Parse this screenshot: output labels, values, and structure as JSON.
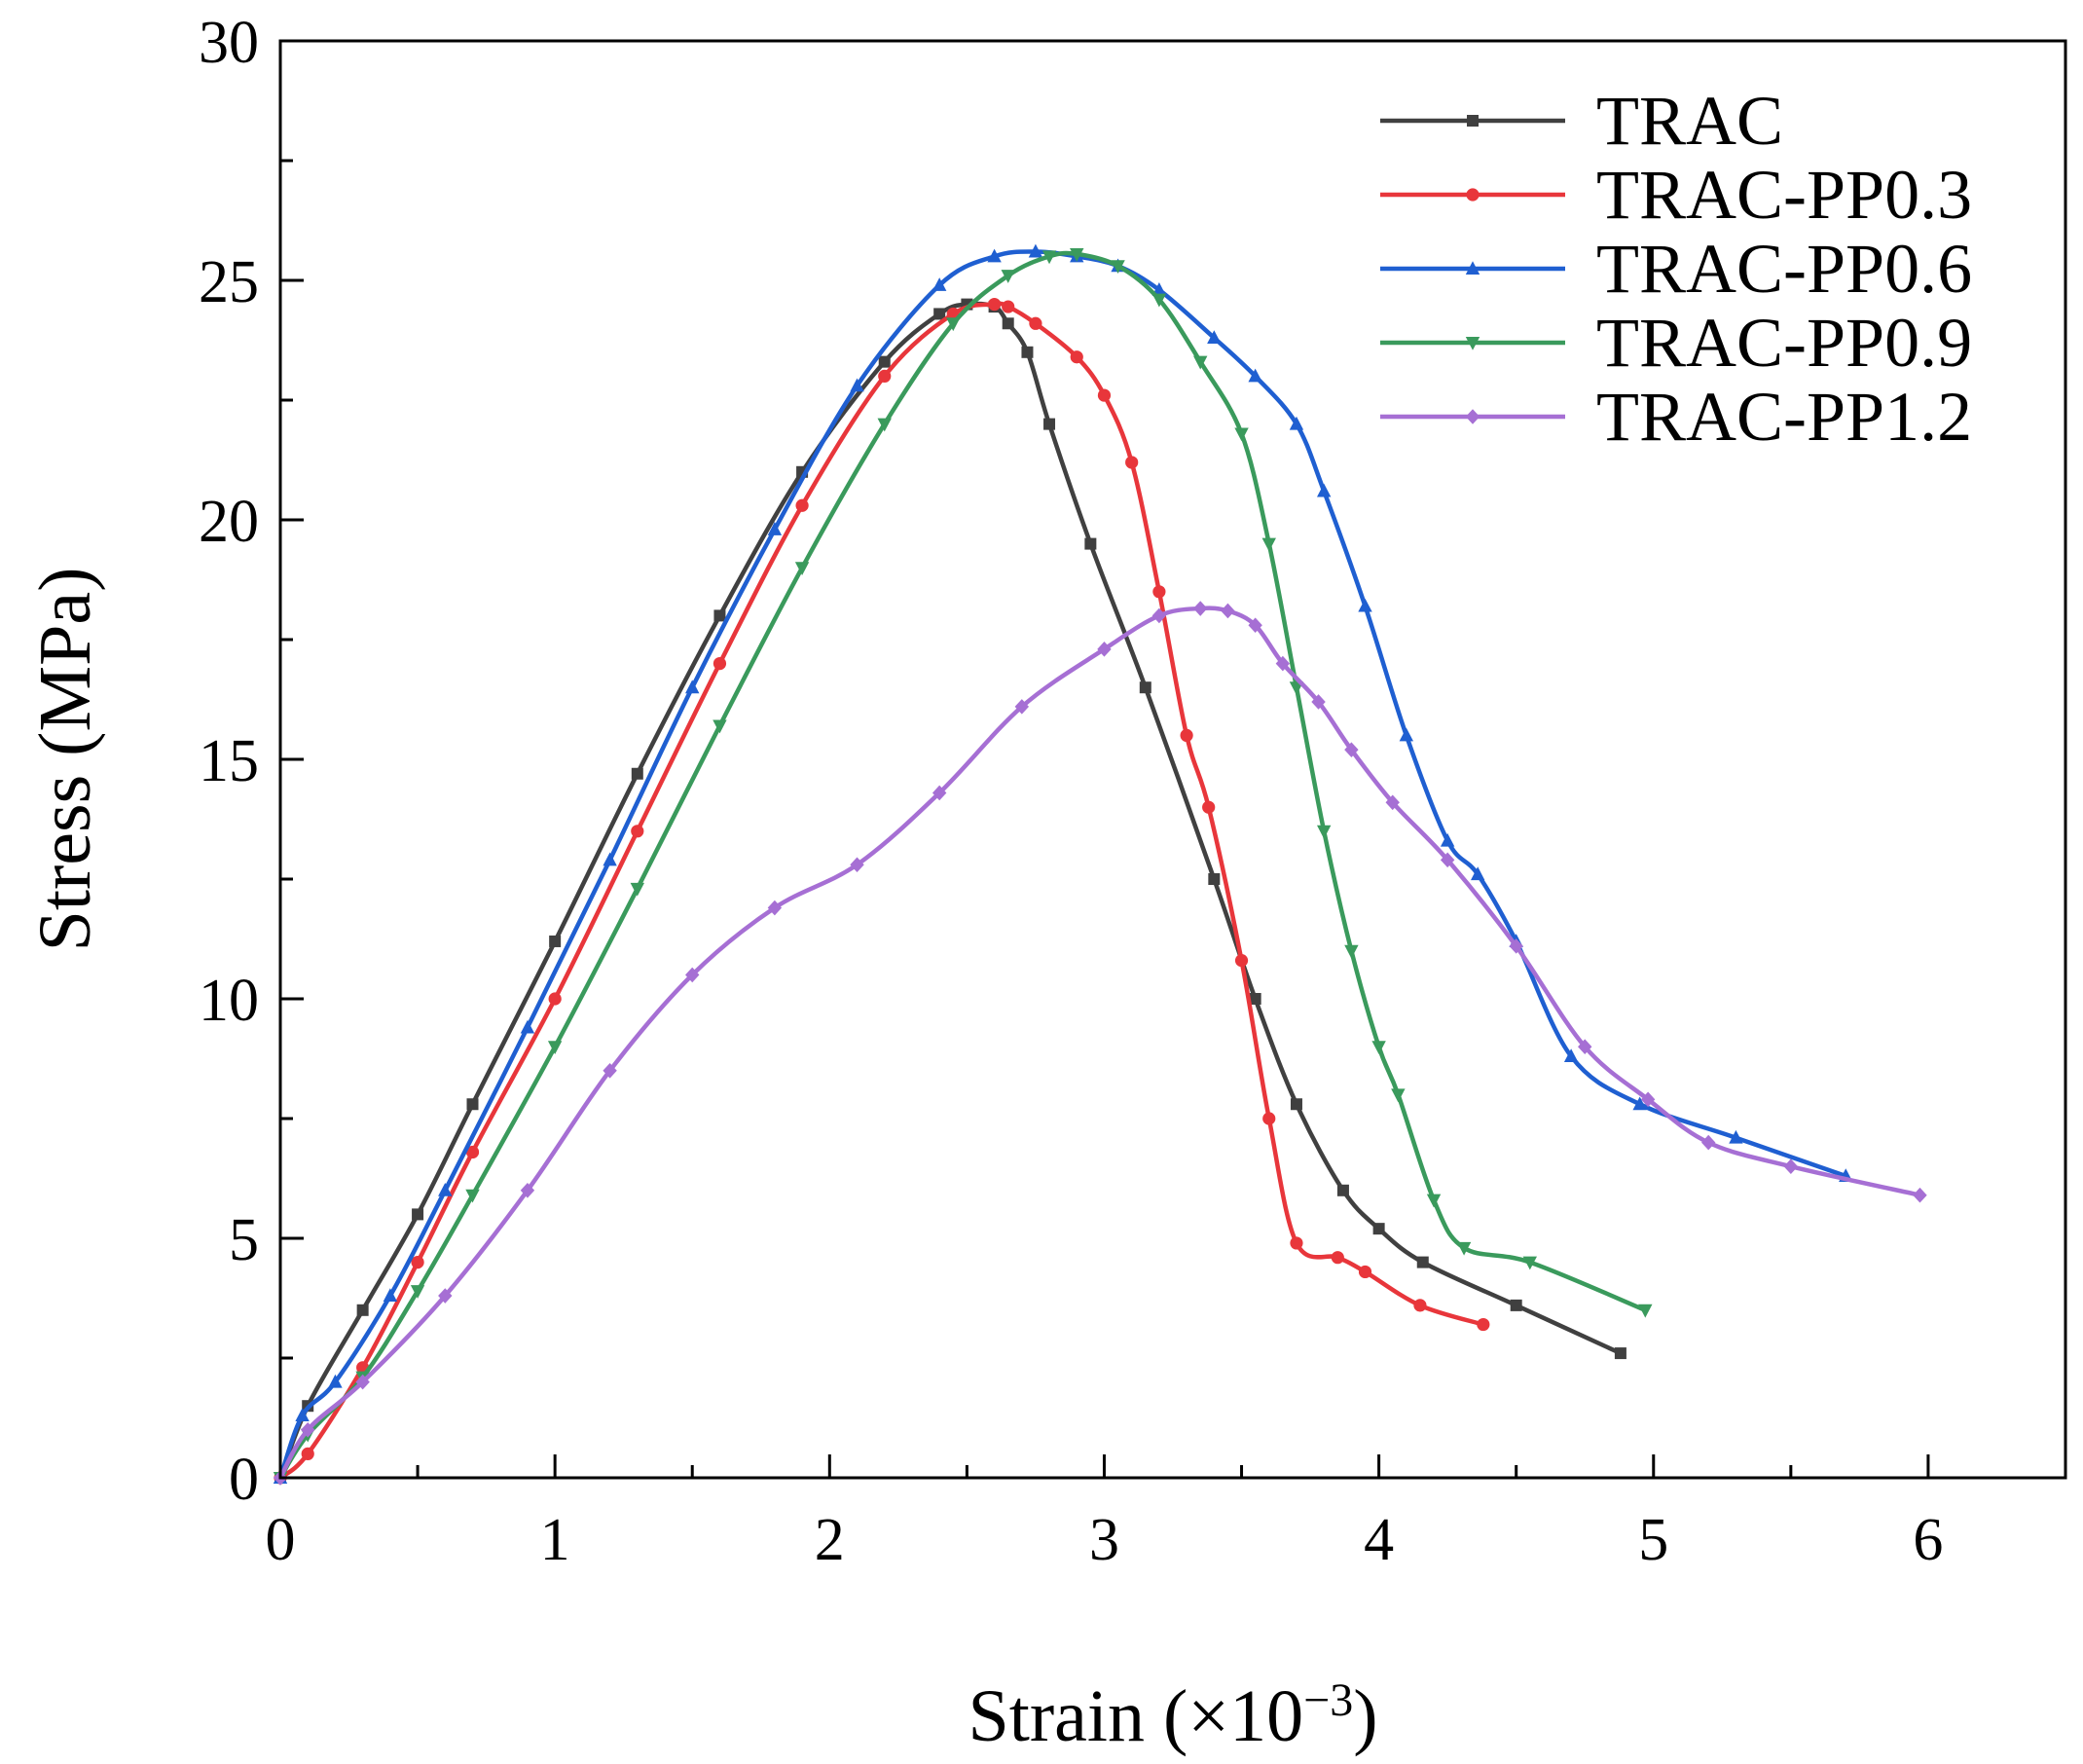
{
  "chart_data": {
    "type": "line",
    "xlabel": "Strain (×10",
    "xlabel_sup": "−3",
    "xlabel_close": ")",
    "ylabel": "Stress (MPa)",
    "xlim": [
      0,
      6.5
    ],
    "ylim": [
      0,
      30
    ],
    "xticks": [
      "0",
      "1",
      "2",
      "3",
      "4",
      "5",
      "6"
    ],
    "xtick_values": [
      0,
      1,
      2,
      3,
      4,
      5,
      6
    ],
    "yticks": [
      "0",
      "5",
      "10",
      "15",
      "20",
      "25",
      "30"
    ],
    "ytick_values": [
      0,
      5,
      10,
      15,
      20,
      25,
      30
    ],
    "grid": false,
    "legend_position": "top-right",
    "series": [
      {
        "name": "TRAC",
        "color": "#404040",
        "marker": "square",
        "x": [
          0,
          0.1,
          0.3,
          0.5,
          0.7,
          1.0,
          1.3,
          1.6,
          1.9,
          2.2,
          2.4,
          2.5,
          2.6,
          2.65,
          2.72,
          2.8,
          2.95,
          3.15,
          3.4,
          3.55,
          3.7,
          3.87,
          4.0,
          4.16,
          4.5,
          4.88
        ],
        "y": [
          0,
          1.5,
          3.5,
          5.5,
          7.8,
          11.2,
          14.7,
          18.0,
          21.0,
          23.3,
          24.3,
          24.5,
          24.45,
          24.1,
          23.5,
          22.0,
          19.5,
          16.5,
          12.5,
          10.0,
          7.8,
          6.0,
          5.2,
          4.5,
          3.6,
          2.6
        ]
      },
      {
        "name": "TRAC-PP0.3",
        "color": "#e8363b",
        "marker": "circle",
        "x": [
          0,
          0.1,
          0.3,
          0.5,
          0.7,
          1.0,
          1.3,
          1.6,
          1.9,
          2.2,
          2.45,
          2.6,
          2.65,
          2.75,
          2.9,
          3.0,
          3.1,
          3.2,
          3.3,
          3.38,
          3.5,
          3.6,
          3.7,
          3.85,
          3.95,
          4.15,
          4.38
        ],
        "y": [
          0,
          0.5,
          2.3,
          4.5,
          6.8,
          10.0,
          13.5,
          17.0,
          20.3,
          23.0,
          24.3,
          24.5,
          24.45,
          24.1,
          23.4,
          22.6,
          21.2,
          18.5,
          15.5,
          14.0,
          10.8,
          7.5,
          4.9,
          4.6,
          4.3,
          3.6,
          3.2
        ]
      },
      {
        "name": "TRAC-PP0.6",
        "color": "#1f5fd1",
        "marker": "triangle-up",
        "x": [
          0,
          0.08,
          0.2,
          0.4,
          0.6,
          0.9,
          1.2,
          1.5,
          1.8,
          2.1,
          2.4,
          2.6,
          2.75,
          2.9,
          3.05,
          3.2,
          3.4,
          3.55,
          3.7,
          3.8,
          3.95,
          4.1,
          4.25,
          4.36,
          4.5,
          4.7,
          4.95,
          5.3,
          5.7
        ],
        "y": [
          0,
          1.3,
          2.0,
          3.8,
          6.0,
          9.4,
          12.9,
          16.5,
          19.8,
          22.8,
          24.9,
          25.5,
          25.6,
          25.5,
          25.3,
          24.8,
          23.8,
          23.0,
          22.0,
          20.6,
          18.2,
          15.5,
          13.3,
          12.6,
          11.2,
          8.8,
          7.8,
          7.1,
          6.3
        ]
      },
      {
        "name": "TRAC-PP0.9",
        "color": "#3a9a5c",
        "marker": "triangle-down",
        "x": [
          0,
          0.1,
          0.3,
          0.5,
          0.7,
          1.0,
          1.3,
          1.6,
          1.9,
          2.2,
          2.45,
          2.65,
          2.8,
          2.9,
          3.05,
          3.2,
          3.35,
          3.5,
          3.6,
          3.7,
          3.8,
          3.9,
          4.0,
          4.07,
          4.2,
          4.31,
          4.55,
          4.97
        ],
        "y": [
          0,
          0.9,
          2.1,
          3.9,
          5.9,
          9.0,
          12.3,
          15.7,
          19.0,
          22.0,
          24.1,
          25.1,
          25.5,
          25.55,
          25.3,
          24.6,
          23.3,
          21.8,
          19.5,
          16.5,
          13.5,
          11.0,
          9.0,
          8.0,
          5.8,
          4.8,
          4.5,
          3.5
        ]
      },
      {
        "name": "TRAC-PP1.2",
        "color": "#a66fd4",
        "marker": "diamond",
        "x": [
          0,
          0.1,
          0.3,
          0.6,
          0.9,
          1.2,
          1.5,
          1.8,
          2.1,
          2.4,
          2.7,
          3.0,
          3.2,
          3.35,
          3.45,
          3.55,
          3.65,
          3.78,
          3.9,
          4.05,
          4.25,
          4.5,
          4.75,
          4.98,
          5.2,
          5.5,
          5.97
        ],
        "y": [
          0,
          1.0,
          2.0,
          3.8,
          6.0,
          8.5,
          10.5,
          11.9,
          12.8,
          14.3,
          16.1,
          17.3,
          18.0,
          18.15,
          18.1,
          17.8,
          17.0,
          16.2,
          15.2,
          14.1,
          12.9,
          11.1,
          9.0,
          7.9,
          7.0,
          6.5,
          5.9
        ]
      }
    ]
  }
}
